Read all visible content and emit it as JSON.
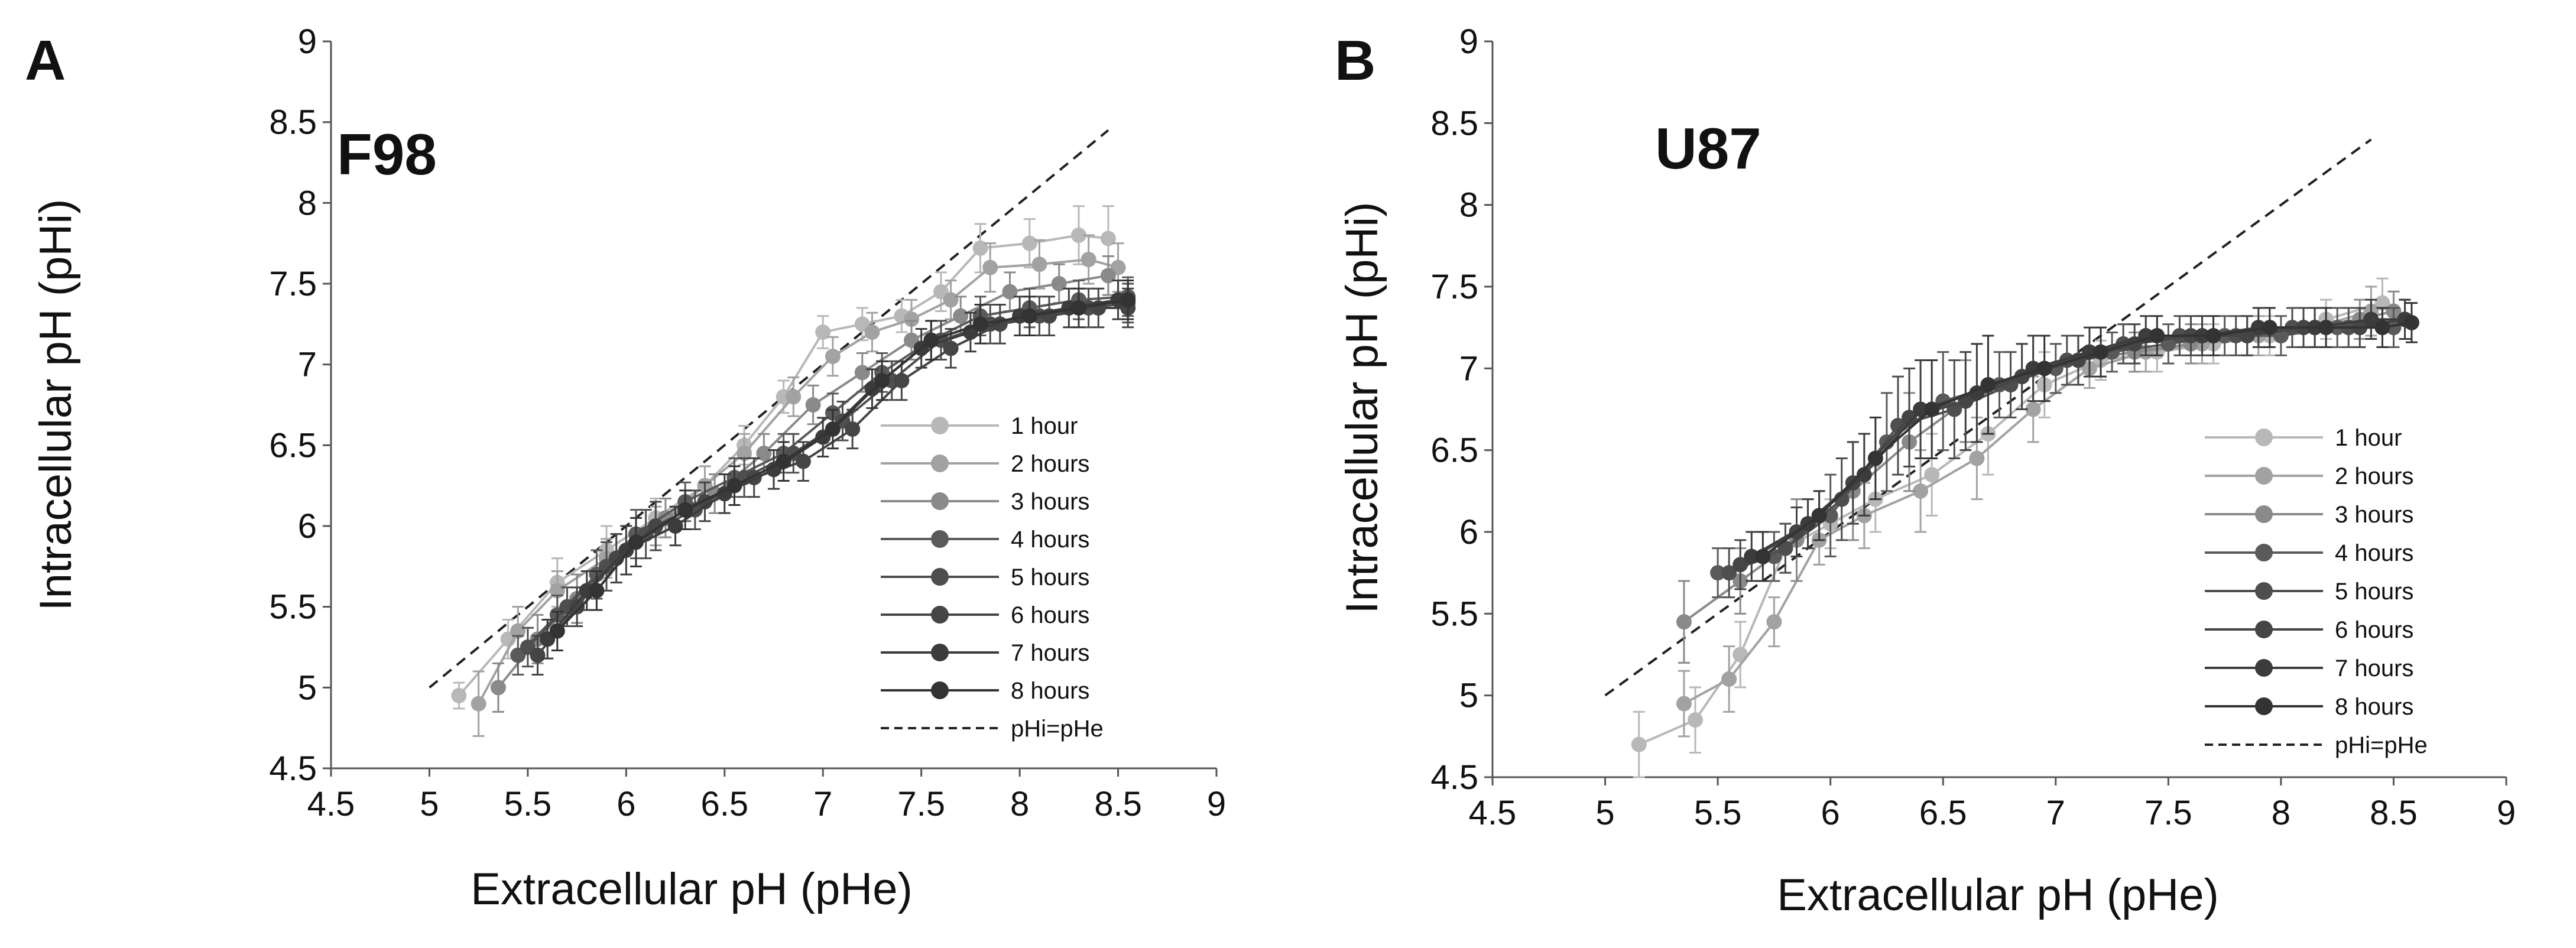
{
  "colors": {
    "1 hour": "#b8b8b8",
    "2 hours": "#a2a2a2",
    "3 hours": "#8a8a8a",
    "4 hours": "#5a5a5a",
    "5 hours": "#4e4e4e",
    "6 hours": "#454545",
    "7 hours": "#3c3c3c",
    "8 hours": "#333333",
    "pHi=pHe": "#222222"
  },
  "chart_data": [
    {
      "type": "line",
      "panel": "A",
      "title": "F98",
      "xlabel": "Extracellular pH (pHe)",
      "ylabel": "Intracellular pH (pHi)",
      "xlim": [
        4.5,
        9
      ],
      "ylim": [
        4.5,
        9
      ],
      "x_ticks": [
        "4.5",
        "5",
        "5.5",
        "6",
        "6.5",
        "7",
        "7.5",
        "8",
        "8.5",
        "9"
      ],
      "y_ticks": [
        "4.5",
        "5",
        "5.5",
        "6",
        "6.5",
        "7",
        "7.5",
        "8",
        "8.5",
        "9"
      ],
      "legend": [
        "1 hour",
        "2 hours",
        "3 hours",
        "4 hours",
        "5 hours",
        "6 hours",
        "7 hours",
        "8 hours",
        "pHi=pHe"
      ],
      "legend_position": "bottom-right",
      "reference_line": {
        "name": "pHi=pHe",
        "x": [
          5,
          8.45
        ],
        "y": [
          5,
          8.45
        ]
      },
      "series": [
        {
          "name": "1 hour",
          "x": [
            5.15,
            5.4,
            5.65,
            5.9,
            6.15,
            6.4,
            6.6,
            6.8,
            7.0,
            7.2,
            7.4,
            7.6,
            7.8,
            8.05,
            8.3,
            8.45
          ],
          "y": [
            4.95,
            5.3,
            5.65,
            5.85,
            6.05,
            6.25,
            6.5,
            6.8,
            7.2,
            7.25,
            7.3,
            7.45,
            7.72,
            7.75,
            7.8,
            7.78
          ],
          "err": [
            0.08,
            0.12,
            0.15,
            0.15,
            0.12,
            0.12,
            0.12,
            0.1,
            0.1,
            0.1,
            0.1,
            0.12,
            0.15,
            0.15,
            0.18,
            0.2
          ]
        },
        {
          "name": "2 hours",
          "x": [
            5.25,
            5.45,
            5.65,
            5.9,
            6.15,
            6.4,
            6.6,
            6.85,
            7.05,
            7.25,
            7.45,
            7.65,
            7.85,
            8.1,
            8.35,
            8.5
          ],
          "y": [
            4.9,
            5.35,
            5.6,
            5.8,
            6.0,
            6.25,
            6.45,
            6.8,
            7.05,
            7.2,
            7.28,
            7.4,
            7.6,
            7.62,
            7.65,
            7.6
          ],
          "err": [
            0.2,
            0.15,
            0.12,
            0.12,
            0.12,
            0.12,
            0.12,
            0.12,
            0.12,
            0.12,
            0.12,
            0.12,
            0.15,
            0.15,
            0.15,
            0.15
          ]
        },
        {
          "name": "3 hours",
          "x": [
            5.35,
            5.55,
            5.75,
            5.95,
            6.2,
            6.45,
            6.7,
            6.95,
            7.2,
            7.45,
            7.7,
            7.95,
            8.2,
            8.45
          ],
          "y": [
            5.0,
            5.3,
            5.55,
            5.8,
            6.05,
            6.2,
            6.45,
            6.75,
            6.95,
            7.15,
            7.3,
            7.45,
            7.5,
            7.55
          ],
          "err": [
            0.15,
            0.15,
            0.15,
            0.15,
            0.12,
            0.12,
            0.12,
            0.12,
            0.12,
            0.12,
            0.12,
            0.12,
            0.12,
            0.12
          ]
        },
        {
          "name": "4 hours",
          "x": [
            5.45,
            5.65,
            5.85,
            6.05,
            6.3,
            6.55,
            6.8,
            7.05,
            7.3,
            7.55,
            7.8,
            8.05,
            8.3,
            8.55
          ],
          "y": [
            5.2,
            5.45,
            5.7,
            5.95,
            6.15,
            6.3,
            6.45,
            6.7,
            6.95,
            7.15,
            7.3,
            7.35,
            7.4,
            7.42
          ],
          "err": [
            0.12,
            0.12,
            0.15,
            0.15,
            0.12,
            0.12,
            0.12,
            0.12,
            0.12,
            0.12,
            0.12,
            0.12,
            0.12,
            0.12
          ]
        },
        {
          "name": "5 hours",
          "x": [
            5.5,
            5.7,
            5.9,
            6.1,
            6.35,
            6.6,
            6.85,
            7.1,
            7.35,
            7.6,
            7.85,
            8.1,
            8.35,
            8.55
          ],
          "y": [
            5.25,
            5.5,
            5.75,
            5.95,
            6.1,
            6.3,
            6.45,
            6.65,
            6.9,
            7.15,
            7.25,
            7.3,
            7.35,
            7.38
          ],
          "err": [
            0.12,
            0.12,
            0.15,
            0.15,
            0.12,
            0.12,
            0.12,
            0.12,
            0.12,
            0.12,
            0.12,
            0.12,
            0.12,
            0.12
          ]
        },
        {
          "name": "6 hours",
          "x": [
            5.55,
            5.75,
            5.95,
            6.15,
            6.4,
            6.65,
            6.9,
            7.15,
            7.4,
            7.65,
            7.9,
            8.15,
            8.4,
            8.55
          ],
          "y": [
            5.2,
            5.5,
            5.8,
            6.0,
            6.15,
            6.3,
            6.4,
            6.6,
            6.9,
            7.1,
            7.25,
            7.3,
            7.35,
            7.35
          ],
          "err": [
            0.12,
            0.12,
            0.15,
            0.15,
            0.12,
            0.12,
            0.12,
            0.12,
            0.12,
            0.12,
            0.12,
            0.12,
            0.12,
            0.12
          ]
        },
        {
          "name": "7 hours",
          "x": [
            5.6,
            5.8,
            6.0,
            6.25,
            6.5,
            6.75,
            7.0,
            7.25,
            7.5,
            7.75,
            8.0,
            8.25,
            8.5
          ],
          "y": [
            5.3,
            5.6,
            5.85,
            6.0,
            6.2,
            6.35,
            6.55,
            6.85,
            7.1,
            7.2,
            7.3,
            7.35,
            7.4
          ],
          "err": [
            0.12,
            0.12,
            0.15,
            0.12,
            0.12,
            0.12,
            0.12,
            0.12,
            0.12,
            0.12,
            0.12,
            0.12,
            0.12
          ]
        },
        {
          "name": "8 hours",
          "x": [
            5.65,
            5.85,
            6.05,
            6.3,
            6.55,
            6.8,
            7.05,
            7.3,
            7.55,
            7.8,
            8.05,
            8.3,
            8.55
          ],
          "y": [
            5.35,
            5.6,
            5.9,
            6.1,
            6.25,
            6.4,
            6.6,
            6.9,
            7.15,
            7.25,
            7.3,
            7.35,
            7.4
          ],
          "err": [
            0.12,
            0.12,
            0.15,
            0.12,
            0.12,
            0.12,
            0.12,
            0.12,
            0.12,
            0.12,
            0.12,
            0.12,
            0.12
          ]
        }
      ]
    },
    {
      "type": "line",
      "panel": "B",
      "title": "U87",
      "xlabel": "Extracellular pH (pHe)",
      "ylabel": "Intracellular pH (pHi)",
      "xlim": [
        4.5,
        9
      ],
      "ylim": [
        4.5,
        9
      ],
      "x_ticks": [
        "4.5",
        "5",
        "5.5",
        "6",
        "6.5",
        "7",
        "7.5",
        "8",
        "8.5",
        "9"
      ],
      "y_ticks": [
        "4.5",
        "5",
        "5.5",
        "6",
        "6.5",
        "7",
        "7.5",
        "8",
        "8.5",
        "9"
      ],
      "legend": [
        "1 hour",
        "2 hours",
        "3 hours",
        "4 hours",
        "5 hours",
        "6 hours",
        "7 hours",
        "8 hours",
        "pHi=pHe"
      ],
      "legend_position": "bottom-right",
      "reference_line": {
        "name": "pHi=pHe",
        "x": [
          5,
          8.4
        ],
        "y": [
          5,
          8.4
        ]
      },
      "series": [
        {
          "name": "1 hour",
          "x": [
            5.15,
            5.4,
            5.6,
            5.8,
            6.0,
            6.2,
            6.45,
            6.7,
            6.95,
            7.2,
            7.45,
            7.7,
            7.95,
            8.2,
            8.45
          ],
          "y": [
            4.7,
            4.85,
            5.25,
            5.9,
            6.05,
            6.2,
            6.35,
            6.6,
            6.9,
            7.05,
            7.1,
            7.15,
            7.2,
            7.3,
            7.4
          ],
          "err": [
            0.2,
            0.2,
            0.2,
            0.15,
            0.15,
            0.2,
            0.25,
            0.25,
            0.2,
            0.12,
            0.12,
            0.12,
            0.12,
            0.12,
            0.15
          ]
        },
        {
          "name": "2 hours",
          "x": [
            5.35,
            5.55,
            5.75,
            5.95,
            6.15,
            6.4,
            6.65,
            6.9,
            7.15,
            7.4,
            7.65,
            7.9,
            8.15,
            8.4
          ],
          "y": [
            4.95,
            5.1,
            5.45,
            5.95,
            6.1,
            6.25,
            6.45,
            6.75,
            7.0,
            7.1,
            7.15,
            7.2,
            7.25,
            7.35
          ],
          "err": [
            0.2,
            0.2,
            0.15,
            0.15,
            0.2,
            0.25,
            0.25,
            0.2,
            0.12,
            0.12,
            0.12,
            0.12,
            0.12,
            0.15
          ]
        },
        {
          "name": "3 hours",
          "x": [
            5.35,
            5.6,
            5.85,
            6.1,
            6.35,
            6.6,
            6.85,
            7.1,
            7.35,
            7.6,
            7.85,
            8.1,
            8.35,
            8.5
          ],
          "y": [
            5.45,
            5.7,
            5.95,
            6.25,
            6.55,
            6.8,
            6.95,
            7.05,
            7.1,
            7.15,
            7.2,
            7.25,
            7.3,
            7.35
          ],
          "err": [
            0.25,
            0.2,
            0.25,
            0.3,
            0.3,
            0.25,
            0.2,
            0.15,
            0.12,
            0.12,
            0.12,
            0.12,
            0.12,
            0.12
          ]
        },
        {
          "name": "4 hours",
          "x": [
            5.5,
            5.75,
            6.0,
            6.25,
            6.5,
            6.75,
            7.0,
            7.25,
            7.5,
            7.75,
            8.0,
            8.25,
            8.5
          ],
          "y": [
            5.75,
            5.85,
            6.1,
            6.55,
            6.8,
            6.9,
            7.0,
            7.1,
            7.15,
            7.2,
            7.2,
            7.25,
            7.25
          ],
          "err": [
            0.15,
            0.15,
            0.25,
            0.3,
            0.3,
            0.2,
            0.15,
            0.12,
            0.12,
            0.12,
            0.12,
            0.12,
            0.12
          ]
        },
        {
          "name": "5 hours",
          "x": [
            5.55,
            5.8,
            6.05,
            6.3,
            6.55,
            6.8,
            7.05,
            7.3,
            7.55,
            7.8,
            8.05,
            8.3,
            8.55
          ],
          "y": [
            5.75,
            5.9,
            6.2,
            6.65,
            6.75,
            6.9,
            7.05,
            7.15,
            7.2,
            7.2,
            7.25,
            7.25,
            7.3
          ],
          "err": [
            0.15,
            0.15,
            0.25,
            0.3,
            0.3,
            0.2,
            0.15,
            0.12,
            0.12,
            0.12,
            0.12,
            0.12,
            0.12
          ]
        },
        {
          "name": "6 hours",
          "x": [
            5.6,
            5.85,
            6.1,
            6.35,
            6.6,
            6.85,
            7.1,
            7.35,
            7.6,
            7.85,
            8.1,
            8.35,
            8.55
          ],
          "y": [
            5.8,
            6.0,
            6.3,
            6.7,
            6.8,
            6.95,
            7.05,
            7.15,
            7.2,
            7.2,
            7.25,
            7.25,
            7.3
          ],
          "err": [
            0.15,
            0.15,
            0.25,
            0.3,
            0.3,
            0.2,
            0.15,
            0.12,
            0.12,
            0.12,
            0.12,
            0.12,
            0.12
          ]
        },
        {
          "name": "7 hours",
          "x": [
            5.65,
            5.9,
            6.15,
            6.4,
            6.65,
            6.9,
            7.15,
            7.4,
            7.65,
            7.9,
            8.15,
            8.4,
            8.55
          ],
          "y": [
            5.85,
            6.05,
            6.35,
            6.75,
            6.85,
            7.0,
            7.1,
            7.2,
            7.2,
            7.25,
            7.25,
            7.3,
            7.3
          ],
          "err": [
            0.15,
            0.15,
            0.25,
            0.3,
            0.3,
            0.2,
            0.15,
            0.12,
            0.12,
            0.12,
            0.12,
            0.12,
            0.12
          ]
        },
        {
          "name": "8 hours",
          "x": [
            5.7,
            5.95,
            6.2,
            6.45,
            6.7,
            6.95,
            7.2,
            7.45,
            7.7,
            7.95,
            8.2,
            8.45,
            8.58
          ],
          "y": [
            5.85,
            6.1,
            6.45,
            6.75,
            6.9,
            7.0,
            7.1,
            7.2,
            7.2,
            7.25,
            7.25,
            7.25,
            7.28
          ],
          "err": [
            0.15,
            0.15,
            0.25,
            0.3,
            0.3,
            0.2,
            0.15,
            0.12,
            0.12,
            0.12,
            0.12,
            0.12,
            0.12
          ]
        }
      ]
    }
  ]
}
